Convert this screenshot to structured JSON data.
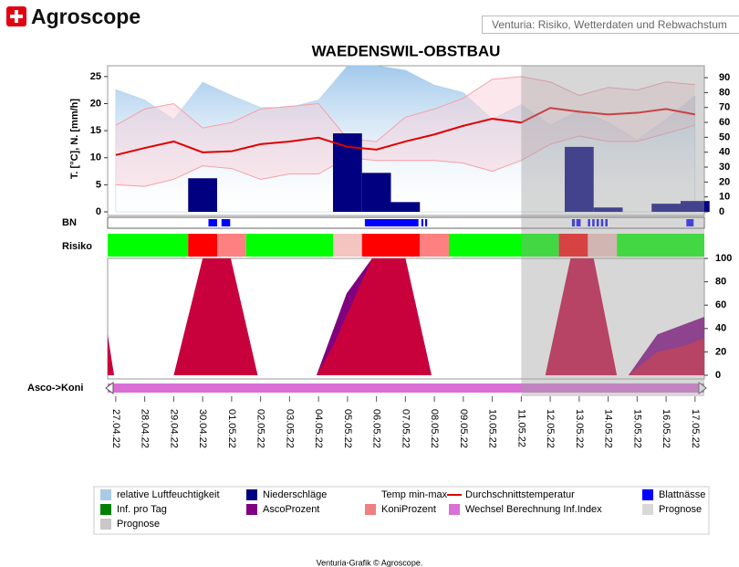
{
  "header": {
    "brand": "Agroscope",
    "selector": "Venturia: Risiko, Wetterdaten und Rebwachstum"
  },
  "footer": "Venturia-Grafik © Agroscope.",
  "prognosis": {
    "xlim": [
      14,
      20.32
    ],
    "color": "#a0a0a0"
  },
  "legend": [
    {
      "name": "relative Luftfeuchtigkeit",
      "color": "#a8cbe8"
    },
    {
      "name": "Niederschläge",
      "color": "#000080"
    },
    {
      "name": "Temp min-max",
      "color": "#ffffff"
    },
    {
      "name": "Durchschnittstemperatur",
      "color": "#e00000",
      "kind": "line"
    },
    {
      "name": "Blattnässe",
      "color": "#0000ff"
    },
    {
      "name": "Inf. pro Tag",
      "color": "#008000"
    },
    {
      "name": "AscoProzent",
      "color": "#800080"
    },
    {
      "name": "KoniProzent",
      "color": "#f08080"
    },
    {
      "name": "Wechsel Berechnung Inf.Index",
      "color": "#da70d6"
    },
    {
      "name": "Prognose",
      "color": "#d8d8d8"
    },
    {
      "name": "Prognose",
      "color": "#c8c8c8"
    }
  ],
  "chart_data": [
    {
      "type": "combo",
      "title": "WAEDENSWIL-OBSTBAU",
      "y_label": "T. [°C], N. [mm/h]",
      "categories": [
        "27.04.22",
        "28.04.22",
        "29.04.22",
        "30.04.22",
        "01.05.22",
        "02.05.22",
        "03.05.22",
        "04.05.22",
        "05.05.22",
        "06.05.22",
        "07.05.22",
        "08.05.22",
        "09.05.22",
        "10.05.22",
        "11.05.22",
        "12.05.22",
        "13.05.22",
        "14.05.22",
        "15.05.22",
        "16.05.22",
        "17.05.22"
      ],
      "xlim": [
        -0.28,
        20.32
      ],
      "ylim": [
        0,
        27
      ],
      "yticks": [
        0,
        5,
        10,
        15,
        20,
        25
      ],
      "y2lim": [
        0,
        98
      ],
      "y2ticks": [
        0,
        10,
        20,
        30,
        40,
        50,
        60,
        70,
        80,
        90
      ],
      "humidity": {
        "color": "#a8cbe8",
        "axis": "y2",
        "values": [
          82,
          75,
          62,
          87,
          78,
          70,
          70,
          75,
          98,
          98,
          95,
          85,
          80,
          62,
          72,
          58,
          68,
          60,
          48,
          62,
          78
        ]
      },
      "temp_range": {
        "color": "#f4a0a8",
        "high": [
          16,
          19,
          20,
          15.5,
          16.5,
          19,
          19.5,
          20,
          13.5,
          13,
          17.5,
          19,
          21,
          24.5,
          25,
          24,
          21.5,
          23,
          22.5,
          24,
          23.5
        ],
        "low": [
          5,
          4.7,
          6,
          8.5,
          8,
          6,
          7,
          7,
          10,
          9.5,
          9.5,
          9.5,
          9,
          7.5,
          9.5,
          12.5,
          14,
          13,
          13,
          14.5,
          16
        ]
      },
      "temperature": {
        "color": "#e00000",
        "values": [
          10.5,
          11.8,
          13,
          11,
          11.2,
          12.5,
          13,
          13.7,
          12,
          11.5,
          13,
          14.3,
          15.9,
          17.2,
          16.5,
          19.2,
          18.5,
          18,
          18.3,
          19,
          18
        ]
      },
      "precipitation": {
        "color": "#000080",
        "values": [
          0,
          0,
          0,
          6.2,
          0,
          0,
          0,
          0,
          14.5,
          7.2,
          1.8,
          0,
          0,
          0,
          0,
          0,
          12,
          0.8,
          0,
          1.5,
          2
        ]
      }
    },
    {
      "type": "strip",
      "label": "BN",
      "color": "#0000ff",
      "xlim": [
        -0.28,
        20.32
      ],
      "start": [
        3.2,
        3.65,
        8.6,
        10.55,
        10.68,
        15.75,
        15.9,
        16.3,
        16.45,
        16.6,
        16.75,
        16.9,
        19.7
      ],
      "end": [
        3.5,
        3.95,
        10.45,
        10.62,
        10.75,
        15.85,
        16.05,
        16.38,
        16.53,
        16.68,
        16.83,
        16.98,
        19.95
      ]
    },
    {
      "type": "segments",
      "label": "Risiko",
      "xlim": [
        -0.28,
        20.32
      ],
      "start": [
        -0.28,
        2.5,
        3.5,
        4.5,
        7.5,
        8.5,
        10.5,
        11.5,
        15.3,
        16.3,
        17.3
      ],
      "end": [
        2.5,
        3.5,
        4.5,
        7.5,
        8.5,
        10.5,
        11.5,
        15.3,
        16.3,
        17.3,
        20.32
      ],
      "colors": [
        "#00ff00",
        "#ff0000",
        "#ff8080",
        "#00ff00",
        "#f4c4c0",
        "#ff0000",
        "#ff8080",
        "#00ff00",
        "#ff0000",
        "#f4c4c0",
        "#00ff00"
      ]
    },
    {
      "type": "area",
      "xlim": [
        -0.28,
        20.32
      ],
      "ylim": [
        0,
        100
      ],
      "yticks": [
        0,
        20,
        40,
        60,
        80,
        100
      ],
      "series": [
        {
          "color": "#800080",
          "x": [
            -0.28,
            -0.06,
            6.93,
            7.97,
            8.85,
            10.0,
            10.9,
            14,
            17.7,
            18.7,
            20.32
          ],
          "values": [
            35,
            0,
            0,
            70,
            100,
            100,
            0,
            null,
            0,
            35,
            50
          ]
        },
        {
          "color": "#c8003c",
          "x": [
            -0.28,
            -0.06,
            2.0,
            3.0,
            3.97,
            4.9,
            6.93,
            7.5,
            8.85,
            10.0,
            10.9,
            14,
            14.83,
            15.7,
            16.5,
            17.3,
            17.7,
            18.7,
            19.6,
            20.32
          ],
          "values": [
            32,
            0,
            0,
            100,
            100,
            0,
            0,
            25,
            100,
            100,
            0,
            null,
            0,
            100,
            100,
            0,
            0,
            20,
            25,
            32
          ]
        }
      ]
    },
    {
      "type": "band",
      "label": "Asco->Koni",
      "color": "#da70d6",
      "xlim": [
        -0.28,
        20.32
      ]
    }
  ]
}
